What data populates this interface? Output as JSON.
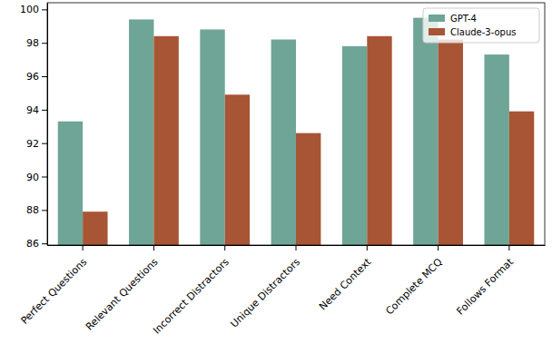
{
  "chart_data": {
    "type": "bar",
    "categories": [
      "Perfect Questions",
      "Relevant Questions",
      "Incorrect Distractors",
      "Unique Distractors",
      "Need Context",
      "Complete MCQ",
      "Follows Format"
    ],
    "series": [
      {
        "name": "GPT-4",
        "color": "#6fa596",
        "values": [
          93.3,
          99.4,
          98.8,
          98.2,
          97.8,
          99.5,
          97.3
        ]
      },
      {
        "name": "Claude-3-opus",
        "color": "#a85535",
        "values": [
          87.9,
          98.4,
          94.9,
          92.6,
          98.4,
          98.2,
          93.9
        ]
      }
    ],
    "ylim": [
      85.9,
      100.4
    ],
    "yticks": [
      86,
      88,
      90,
      92,
      94,
      96,
      98,
      100
    ],
    "legend": "upper right",
    "grid": false
  }
}
